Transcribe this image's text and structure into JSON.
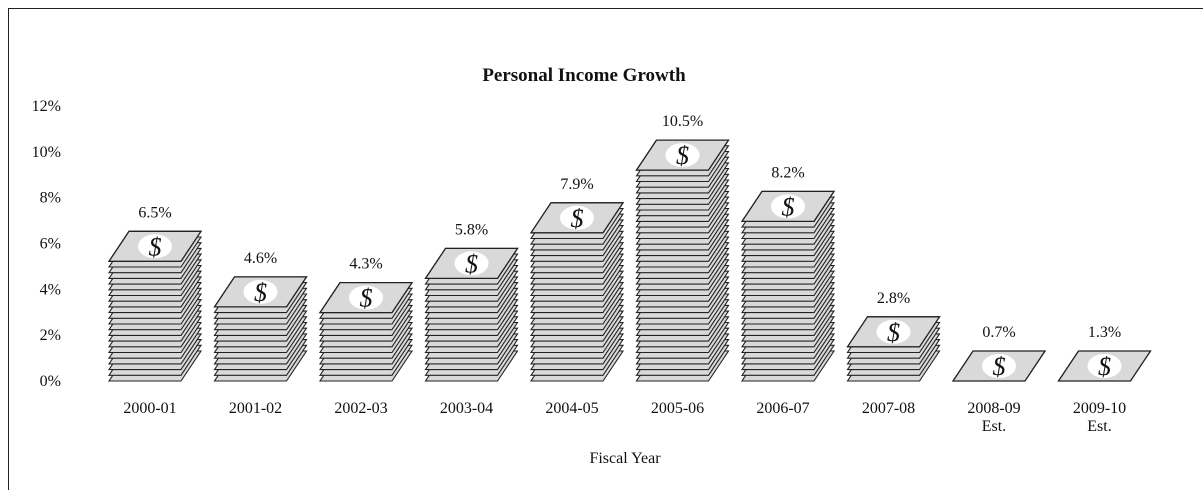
{
  "chart_data": {
    "type": "bar",
    "title": "Personal Income Growth",
    "xlabel": "Fiscal Year",
    "ylabel": "",
    "ylim": [
      0,
      12
    ],
    "yticks": [
      "0%",
      "2%",
      "4%",
      "6%",
      "8%",
      "10%",
      "12%"
    ],
    "categories": [
      [
        "2000-01"
      ],
      [
        "2001-02"
      ],
      [
        "2002-03"
      ],
      [
        "2003-04"
      ],
      [
        "2004-05"
      ],
      [
        "2005-06"
      ],
      [
        "2006-07"
      ],
      [
        "2007-08"
      ],
      [
        "2008-09",
        "Est."
      ],
      [
        "2009-10",
        "Est."
      ]
    ],
    "values": [
      6.5,
      4.6,
      4.3,
      5.8,
      7.9,
      10.5,
      8.2,
      2.8,
      0.7,
      1.3
    ],
    "value_labels": [
      "6.5%",
      "4.6%",
      "4.3%",
      "5.8%",
      "7.9%",
      "10.5%",
      "8.2%",
      "2.8%",
      "0.7%",
      "1.3%"
    ],
    "bar_symbol": "$",
    "grid": false,
    "legend": "none",
    "colors": {
      "sheet_fill": "#d9d9d9",
      "sheet_stroke": "#222222",
      "symbol_bg": "#ffffff"
    }
  }
}
